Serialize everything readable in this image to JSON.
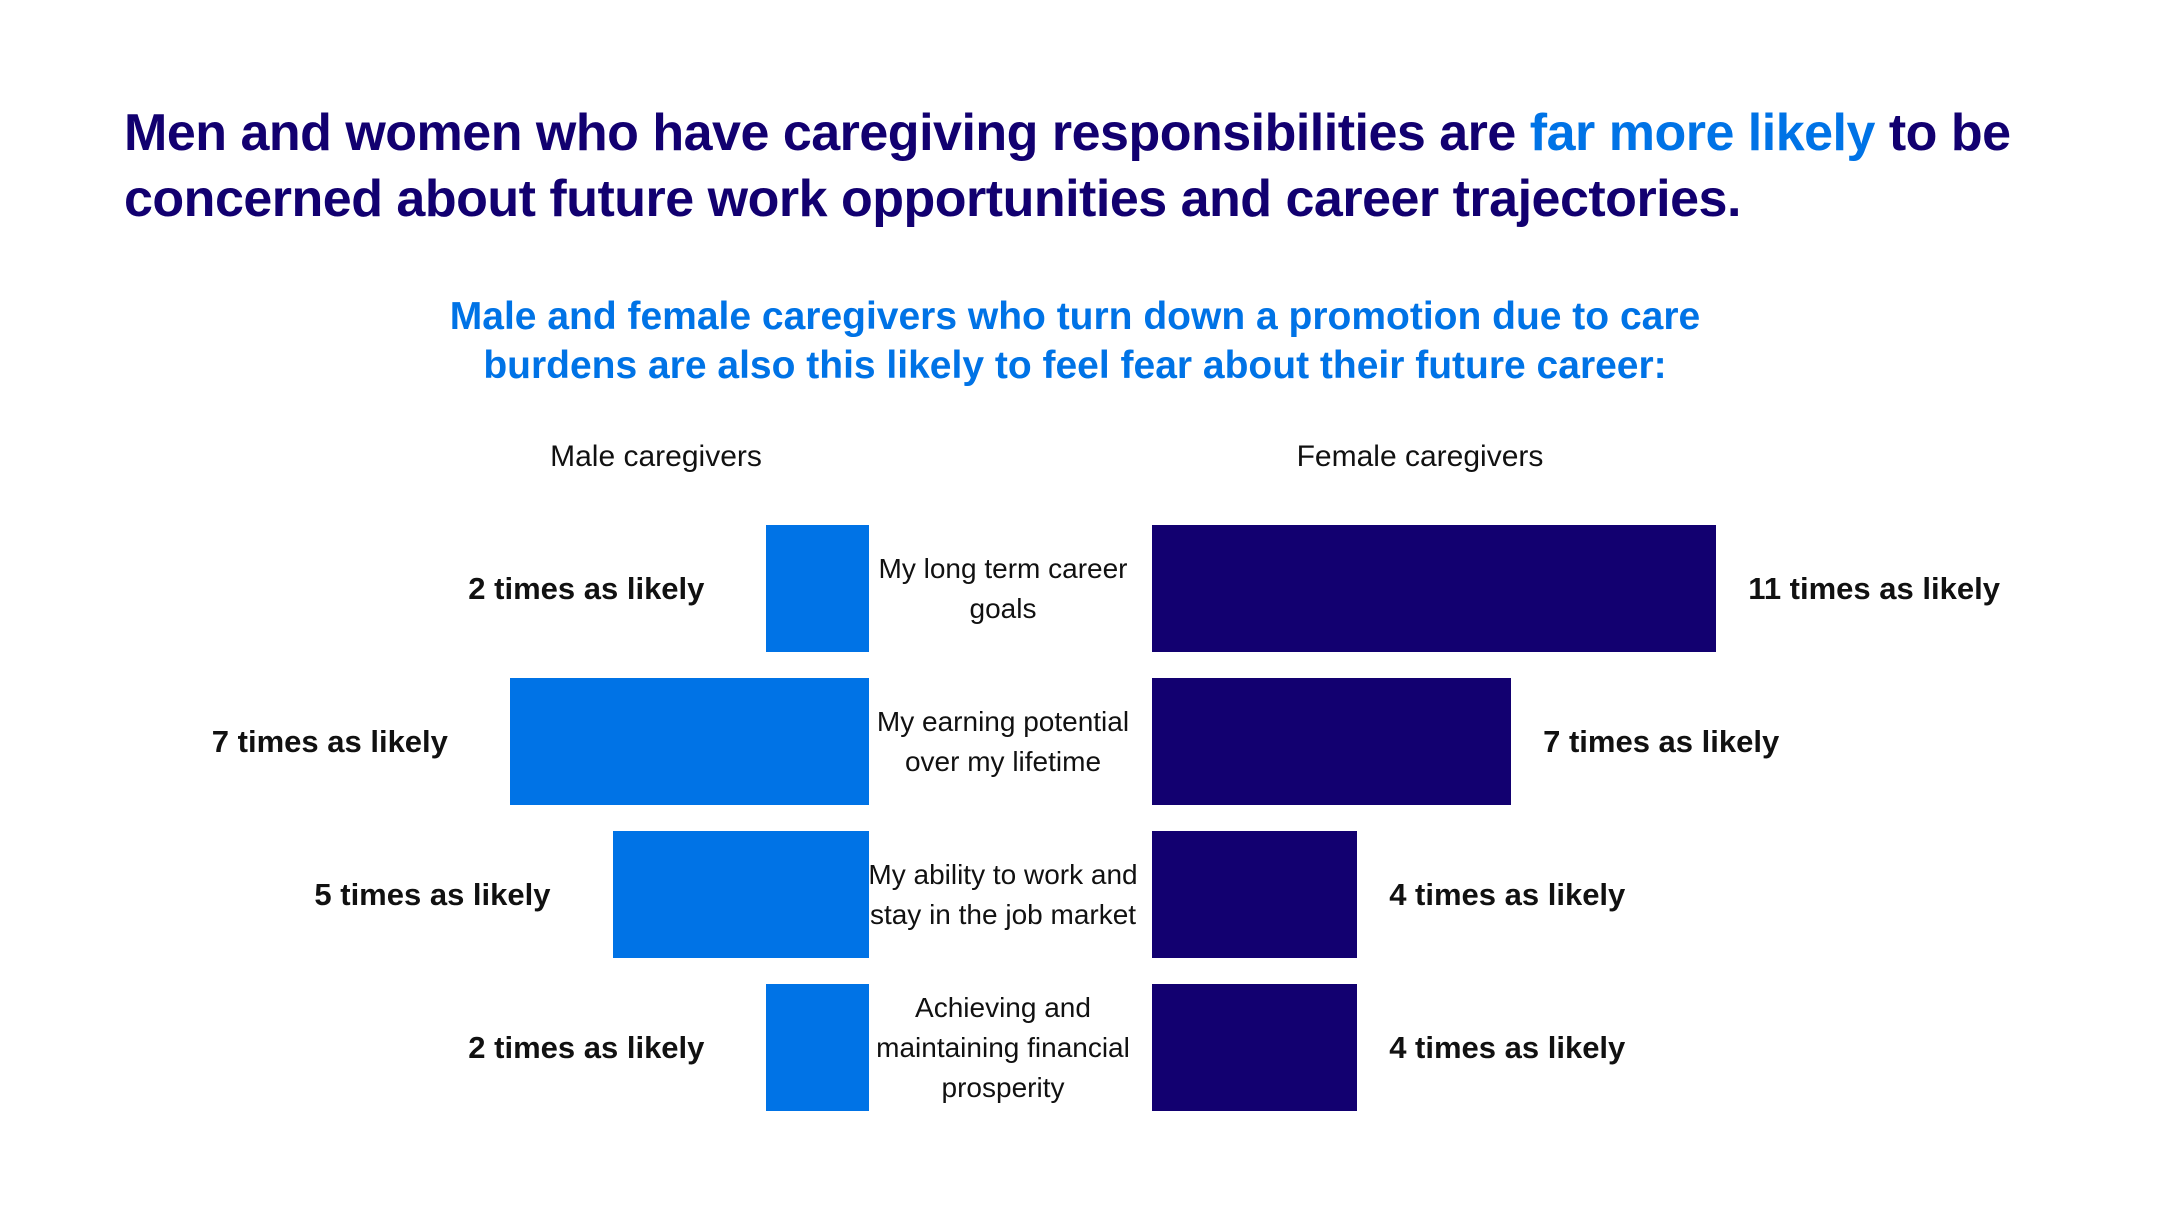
{
  "chart_data": {
    "type": "butterfly",
    "title_parts": [
      "Men and women who have caregiving responsibilities are",
      "far more likely",
      "to be concerned about future work opportunities and career trajectories."
    ],
    "subtitle": "Male and female caregivers who turn down a promotion due to care burdens are also this likely to feel fear about their future career:",
    "categories": [
      "My long term career goals",
      "My earning potential over my lifetime",
      "My ability to work and stay in the job market",
      "Achieving and maintaining financial prosperity"
    ],
    "series": [
      {
        "name": "Male caregivers",
        "color": "#0073e6",
        "side": "left",
        "values": [
          2,
          7,
          5,
          2
        ],
        "value_labels": [
          "2 times as likely",
          "7 times as likely",
          "5 times as likely",
          "2 times as likely"
        ]
      },
      {
        "name": "Female caregivers",
        "color": "#120070",
        "side": "right",
        "values": [
          11,
          7,
          4,
          4
        ],
        "value_labels": [
          "11 times as likely",
          "7 times as likely",
          "4 times as likely",
          "4 times as likely"
        ]
      }
    ]
  }
}
